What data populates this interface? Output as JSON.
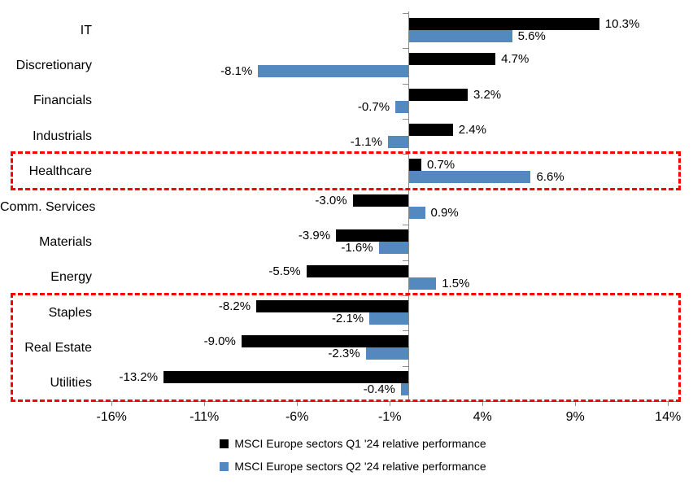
{
  "chart_data": {
    "type": "bar",
    "orientation": "horizontal",
    "title": "",
    "categories": [
      "IT",
      "Discretionary",
      "Financials",
      "Industrials",
      "Healthcare",
      "Comm. Services",
      "Materials",
      "Energy",
      "Staples",
      "Real Estate",
      "Utilities"
    ],
    "series": [
      {
        "name": "MSCI Europe sectors Q1 '24 relative performance",
        "color": "#000000",
        "values": [
          10.3,
          4.7,
          3.2,
          2.4,
          0.7,
          -3.0,
          -3.9,
          -5.5,
          -8.2,
          -9.0,
          -13.2
        ]
      },
      {
        "name": "MSCI Europe sectors Q2 '24 relative performance",
        "color": "#5389BE",
        "values": [
          5.6,
          -8.1,
          -0.7,
          -1.1,
          6.6,
          0.9,
          -1.6,
          1.5,
          -2.1,
          -2.3,
          -0.4
        ]
      }
    ],
    "value_label_format": "one_decimal_percent",
    "x_axis": {
      "tick_values": [
        -16,
        -11,
        -6,
        -1,
        4,
        9,
        14
      ],
      "tick_labels": [
        "-16%",
        "-11%",
        "-6%",
        "-1%",
        "4%",
        "9%",
        "14%"
      ],
      "xlim": [
        -17,
        14.5
      ],
      "grid": false
    },
    "legend_position": "bottom",
    "highlights": [
      {
        "sectors": [
          "Healthcare"
        ],
        "color": "#FF0000",
        "style": "dashed"
      },
      {
        "sectors": [
          "Staples",
          "Real Estate",
          "Utilities"
        ],
        "color": "#FF0000",
        "style": "dashed"
      }
    ],
    "axis_color": "#8C8C8C"
  }
}
